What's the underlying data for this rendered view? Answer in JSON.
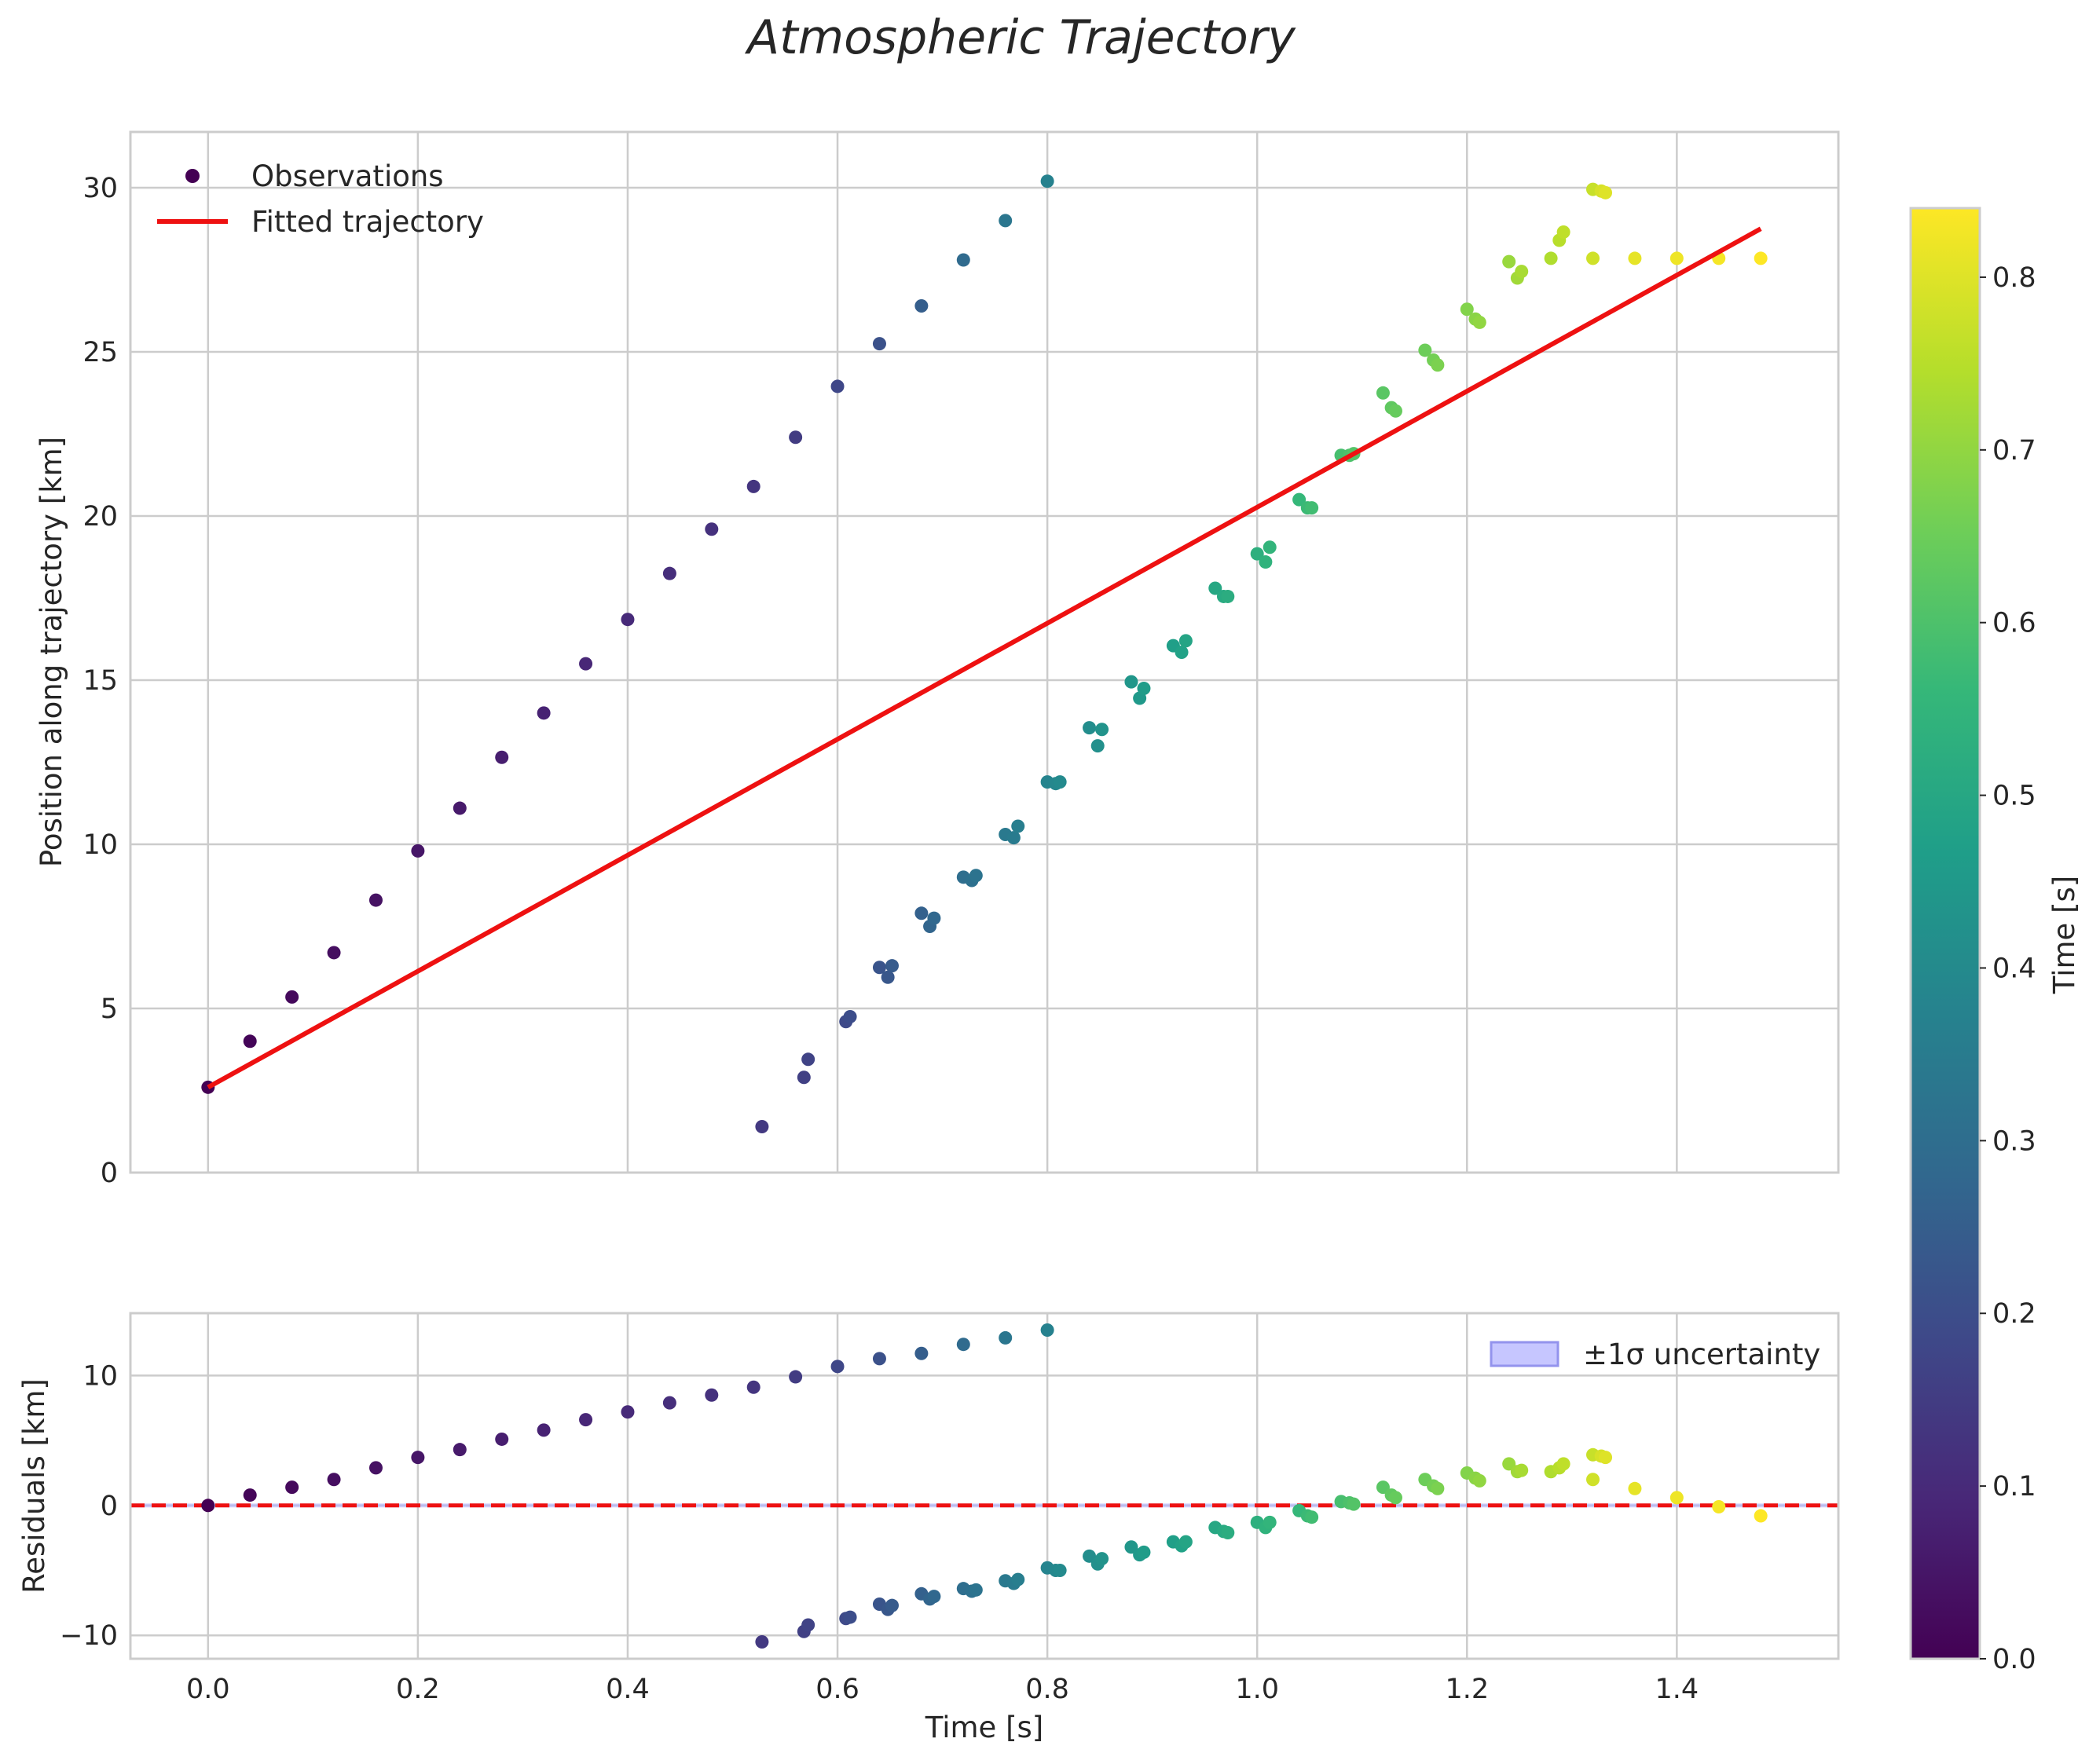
{
  "chart_data": {
    "type": "scatter",
    "title": "Atmospheric Trajectory",
    "colors": {
      "fit_line": "#ee1111",
      "uncertainty_fill": "#b3b3ff",
      "uncertainty_edge": "#6f6fe8",
      "grid": "#cccccc",
      "spine": "#cccccc",
      "viridis": [
        "#440154",
        "#482878",
        "#3e4989",
        "#31688e",
        "#26828e",
        "#1f9e89",
        "#35b779",
        "#6ece58",
        "#b5de2b",
        "#fde725"
      ]
    },
    "main_panel": {
      "xlabel": "Time [s]",
      "ylabel": "Position along trajectory [km]",
      "xlim": [
        -0.074,
        1.554
      ],
      "ylim": [
        0,
        31.7
      ],
      "xticks": [
        0.0,
        0.2,
        0.4,
        0.6,
        0.8,
        1.0,
        1.2,
        1.4
      ],
      "xtick_labels": [
        "0.0",
        "0.2",
        "0.4",
        "0.6",
        "0.8",
        "1.0",
        "1.2",
        "1.4"
      ],
      "yticks": [
        0,
        5,
        10,
        15,
        20,
        25,
        30
      ],
      "ytick_labels": [
        "0",
        "5",
        "10",
        "15",
        "20",
        "25",
        "30"
      ],
      "grid": true,
      "legend": {
        "position": "top-left",
        "entries": [
          {
            "label": "Observations",
            "marker": "dot"
          },
          {
            "label": "Fitted trajectory",
            "marker": "line"
          }
        ]
      },
      "fit_line": {
        "x": [
          0.0,
          1.48
        ],
        "y": [
          2.6,
          28.75
        ]
      },
      "observations": {
        "x": [
          0.0,
          0.04,
          0.08,
          0.12,
          0.16,
          0.2,
          0.24,
          0.28,
          0.32,
          0.36,
          0.4,
          0.44,
          0.48,
          0.52,
          0.56,
          0.6,
          0.64,
          0.68,
          0.72,
          0.76,
          0.8,
          0.528,
          0.568,
          0.572,
          0.608,
          0.612,
          0.64,
          0.648,
          0.652,
          0.68,
          0.688,
          0.692,
          0.72,
          0.728,
          0.732,
          0.76,
          0.768,
          0.772,
          0.8,
          0.808,
          0.812,
          0.84,
          0.848,
          0.852,
          0.88,
          0.888,
          0.892,
          0.92,
          0.928,
          0.932,
          0.96,
          0.968,
          0.972,
          1.0,
          1.008,
          1.012,
          1.04,
          1.048,
          1.052,
          1.08,
          1.088,
          1.092,
          1.12,
          1.128,
          1.132,
          1.16,
          1.168,
          1.172,
          1.2,
          1.208,
          1.212,
          1.24,
          1.248,
          1.252,
          1.28,
          1.288,
          1.292,
          1.32,
          1.328,
          1.332,
          1.32,
          1.36,
          1.4,
          1.44,
          1.48
        ],
        "y": [
          2.6,
          4.0,
          5.35,
          6.7,
          8.3,
          9.8,
          11.1,
          12.65,
          14.0,
          15.5,
          16.85,
          18.25,
          19.6,
          20.9,
          22.4,
          23.95,
          25.25,
          26.4,
          27.8,
          29.0,
          30.2,
          1.4,
          2.9,
          3.45,
          4.6,
          4.75,
          6.25,
          5.95,
          6.3,
          7.9,
          7.5,
          7.75,
          9.0,
          8.9,
          9.05,
          10.3,
          10.2,
          10.55,
          11.9,
          11.85,
          11.9,
          13.55,
          13.0,
          13.5,
          14.95,
          14.45,
          14.75,
          16.05,
          15.85,
          16.2,
          17.8,
          17.55,
          17.55,
          18.85,
          18.6,
          19.05,
          20.5,
          20.25,
          20.25,
          21.85,
          21.85,
          21.9,
          23.75,
          23.3,
          23.2,
          25.05,
          24.75,
          24.6,
          26.3,
          26.0,
          25.9,
          27.75,
          27.25,
          27.45,
          27.85,
          28.4,
          28.65,
          29.95,
          29.9,
          29.85,
          27.85,
          27.85,
          27.85,
          27.85,
          27.85
        ]
      }
    },
    "residual_panel": {
      "xlabel": "Time [s]",
      "ylabel": "Residuals [km]",
      "xlim": [
        -0.074,
        1.554
      ],
      "ylim": [
        -11.8,
        14.8
      ],
      "xticks": [
        0.0,
        0.2,
        0.4,
        0.6,
        0.8,
        1.0,
        1.2,
        1.4
      ],
      "xtick_labels": [
        "0.0",
        "0.2",
        "0.4",
        "0.6",
        "0.8",
        "1.0",
        "1.2",
        "1.4"
      ],
      "yticks": [
        -10,
        0,
        10
      ],
      "ytick_labels": [
        "−10",
        "0",
        "10"
      ],
      "grid": true,
      "zero_line": 0,
      "uncertainty_band": [
        -0.15,
        0.15
      ],
      "legend": {
        "position": "top-right",
        "entries": [
          {
            "label": "±1σ uncertainty",
            "marker": "patch"
          }
        ]
      },
      "residuals": [
        0.0,
        0.8,
        1.4,
        2.0,
        2.9,
        3.7,
        4.3,
        5.1,
        5.8,
        6.6,
        7.2,
        7.9,
        8.5,
        9.1,
        9.9,
        10.7,
        11.3,
        11.7,
        12.4,
        12.9,
        13.5,
        -10.5,
        -9.7,
        -9.2,
        -8.7,
        -8.6,
        -7.6,
        -8.0,
        -7.7,
        -6.8,
        -7.2,
        -7.0,
        -6.4,
        -6.6,
        -6.5,
        -5.8,
        -6.0,
        -5.7,
        -4.8,
        -5.0,
        -5.0,
        -3.9,
        -4.5,
        -4.1,
        -3.2,
        -3.8,
        -3.6,
        -2.8,
        -3.1,
        -2.8,
        -1.7,
        -2.0,
        -2.1,
        -1.3,
        -1.7,
        -1.3,
        -0.4,
        -0.8,
        -0.9,
        0.3,
        0.2,
        0.1,
        1.4,
        0.8,
        0.6,
        2.0,
        1.5,
        1.3,
        2.5,
        2.1,
        1.9,
        3.2,
        2.6,
        2.7,
        2.6,
        2.9,
        3.2,
        3.9,
        3.8,
        3.7,
        2.0,
        1.3,
        0.6,
        -0.1,
        -0.8
      ]
    },
    "colorbar": {
      "label": "Time [s]",
      "range": [
        0.0,
        0.84
      ],
      "ticks": [
        0.0,
        0.1,
        0.2,
        0.3,
        0.4,
        0.5,
        0.6,
        0.7,
        0.8
      ],
      "tick_labels": [
        "0.0",
        "0.1",
        "0.2",
        "0.3",
        "0.4",
        "0.5",
        "0.6",
        "0.7",
        "0.8"
      ],
      "colormap": "viridis"
    }
  }
}
